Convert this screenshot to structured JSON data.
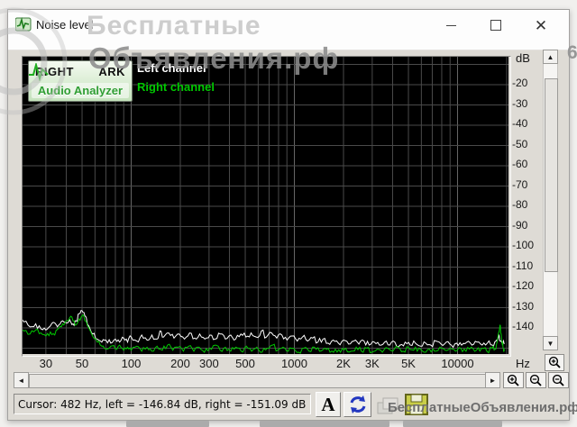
{
  "window": {
    "title": "Noise level",
    "controls": [
      "minimize",
      "maximize",
      "close"
    ]
  },
  "logo": {
    "brand_left": "RIGHT",
    "brand_right": "ARK",
    "subtitle": "Audio Analyzer"
  },
  "legend": [
    {
      "label": "Left channel",
      "color": "#ffffff"
    },
    {
      "label": "Right channel",
      "color": "#00c800"
    }
  ],
  "status_bar": {
    "text": "Cursor:  482 Hz,  left = -146.84 dB,  right = -151.09 dB"
  },
  "toolbar": {
    "text_button_label": "A"
  },
  "watermark": {
    "line1": "Бесплатные",
    "line2": "Объявления.рф",
    "bottom": "БесплатныеОбъявления.рф",
    "edge_fragment": "6"
  },
  "chart_data": {
    "type": "line",
    "title": "Noise level",
    "x_axis": {
      "label": "Hz",
      "scale": "log",
      "min": 20,
      "max": 20000,
      "ticks": [
        [
          30,
          "30"
        ],
        [
          50,
          "50"
        ],
        [
          100,
          "100"
        ],
        [
          200,
          "200"
        ],
        [
          300,
          "300"
        ],
        [
          500,
          "500"
        ],
        [
          1000,
          "1000"
        ],
        [
          2000,
          "2K"
        ],
        [
          3000,
          "3K"
        ],
        [
          5000,
          "5K"
        ],
        [
          10000,
          "10000"
        ]
      ],
      "gridlines": [
        30,
        40,
        50,
        60,
        70,
        80,
        90,
        100,
        200,
        300,
        400,
        500,
        600,
        700,
        800,
        900,
        1000,
        2000,
        3000,
        4000,
        5000,
        6000,
        7000,
        8000,
        9000,
        10000,
        20000
      ]
    },
    "y_axis": {
      "label": "dB",
      "min": -153,
      "max": -6,
      "ticks": [
        -20,
        -30,
        -40,
        -50,
        -60,
        -70,
        -80,
        -90,
        -100,
        -110,
        -120,
        -130,
        -140
      ],
      "gridlines": [
        -10,
        -20,
        -30,
        -40,
        -50,
        -60,
        -70,
        -80,
        -90,
        -100,
        -110,
        -120,
        -130,
        -140,
        -150
      ]
    },
    "grid_color": "#4a4a4a",
    "decade_grid_color": "#676767",
    "series": [
      {
        "name": "Left channel",
        "color": "#ffffff",
        "points": [
          [
            20,
            -135.5
          ],
          [
            22,
            -137
          ],
          [
            24,
            -139.5
          ],
          [
            26,
            -138
          ],
          [
            28,
            -140.5
          ],
          [
            30,
            -141
          ],
          [
            32,
            -139
          ],
          [
            34,
            -137.5
          ],
          [
            36,
            -138.5
          ],
          [
            38,
            -136.5
          ],
          [
            40,
            -137.5
          ],
          [
            42,
            -136
          ],
          [
            44,
            -138
          ],
          [
            46,
            -136.5
          ],
          [
            48,
            -133
          ],
          [
            50,
            -131.5
          ],
          [
            52,
            -134
          ],
          [
            55,
            -139
          ],
          [
            58,
            -143
          ],
          [
            62,
            -145.5
          ],
          [
            66,
            -147
          ],
          [
            70,
            -146
          ],
          [
            75,
            -147.5
          ],
          [
            80,
            -145.5
          ],
          [
            85,
            -147
          ],
          [
            90,
            -145
          ],
          [
            95,
            -147
          ],
          [
            100,
            -144.5
          ],
          [
            108,
            -146.5
          ],
          [
            116,
            -143.5
          ],
          [
            125,
            -146
          ],
          [
            134,
            -143.5
          ],
          [
            144,
            -145.5
          ],
          [
            150,
            -141.5
          ],
          [
            158,
            -144.5
          ],
          [
            170,
            -142.5
          ],
          [
            183,
            -145
          ],
          [
            197,
            -143
          ],
          [
            212,
            -145.5
          ],
          [
            228,
            -142.5
          ],
          [
            245,
            -145
          ],
          [
            263,
            -143
          ],
          [
            283,
            -145.5
          ],
          [
            304,
            -143.5
          ],
          [
            327,
            -145.5
          ],
          [
            352,
            -143
          ],
          [
            378,
            -145.5
          ],
          [
            407,
            -143.5
          ],
          [
            437,
            -145.5
          ],
          [
            470,
            -143
          ],
          [
            505,
            -144.5
          ],
          [
            543,
            -142.5
          ],
          [
            584,
            -144.5
          ],
          [
            628,
            -141.5
          ],
          [
            675,
            -144.5
          ],
          [
            726,
            -142.5
          ],
          [
            780,
            -145
          ],
          [
            839,
            -143.5
          ],
          [
            902,
            -146
          ],
          [
            970,
            -144
          ],
          [
            1043,
            -146.5
          ],
          [
            1121,
            -144.5
          ],
          [
            1205,
            -146.5
          ],
          [
            1296,
            -145
          ],
          [
            1393,
            -147
          ],
          [
            1498,
            -145.5
          ],
          [
            1610,
            -147.5
          ],
          [
            1731,
            -146
          ],
          [
            1861,
            -147.5
          ],
          [
            2001,
            -146
          ],
          [
            2151,
            -148
          ],
          [
            2313,
            -146.5
          ],
          [
            2487,
            -148
          ],
          [
            2674,
            -146.5
          ],
          [
            2875,
            -148.5
          ],
          [
            3091,
            -147
          ],
          [
            3323,
            -148.5
          ],
          [
            3573,
            -147
          ],
          [
            3841,
            -148.5
          ],
          [
            4130,
            -147
          ],
          [
            4440,
            -148.5
          ],
          [
            4774,
            -147
          ],
          [
            5133,
            -148.5
          ],
          [
            5518,
            -147.5
          ],
          [
            5933,
            -149
          ],
          [
            6379,
            -147.5
          ],
          [
            6858,
            -148.5
          ],
          [
            7374,
            -146.5
          ],
          [
            7928,
            -148
          ],
          [
            8524,
            -147
          ],
          [
            9165,
            -148.5
          ],
          [
            9854,
            -147.5
          ],
          [
            10594,
            -148.5
          ],
          [
            11391,
            -147
          ],
          [
            12247,
            -148.5
          ],
          [
            13168,
            -147
          ],
          [
            14158,
            -148.5
          ],
          [
            15222,
            -147.5
          ],
          [
            16366,
            -148.5
          ],
          [
            17200,
            -146.5
          ],
          [
            17800,
            -144.5
          ],
          [
            18300,
            -146.5
          ],
          [
            18800,
            -147.5
          ],
          [
            19300,
            -148
          ]
        ]
      },
      {
        "name": "Right channel",
        "color": "#00c800",
        "points": [
          [
            20,
            -139.5
          ],
          [
            22,
            -141.5
          ],
          [
            24,
            -143
          ],
          [
            26,
            -141
          ],
          [
            28,
            -142.5
          ],
          [
            30,
            -144
          ],
          [
            32,
            -142
          ],
          [
            34,
            -143.5
          ],
          [
            36,
            -140
          ],
          [
            38,
            -138
          ],
          [
            40,
            -136.5
          ],
          [
            42,
            -135
          ],
          [
            44,
            -136.5
          ],
          [
            46,
            -138.5
          ],
          [
            48,
            -135.5
          ],
          [
            50,
            -134
          ],
          [
            52,
            -136.5
          ],
          [
            55,
            -140
          ],
          [
            58,
            -144
          ],
          [
            62,
            -147
          ],
          [
            66,
            -149
          ],
          [
            70,
            -150.5
          ],
          [
            75,
            -149
          ],
          [
            80,
            -150.5
          ],
          [
            85,
            -148.5
          ],
          [
            90,
            -151
          ],
          [
            95,
            -149.5
          ],
          [
            100,
            -151
          ],
          [
            108,
            -149
          ],
          [
            116,
            -151.5
          ],
          [
            125,
            -149.5
          ],
          [
            134,
            -151.5
          ],
          [
            144,
            -149
          ],
          [
            155,
            -151
          ],
          [
            167,
            -148.5
          ],
          [
            180,
            -151
          ],
          [
            194,
            -149.5
          ],
          [
            209,
            -151.5
          ],
          [
            225,
            -149
          ],
          [
            242,
            -151.5
          ],
          [
            261,
            -149.5
          ],
          [
            281,
            -152
          ],
          [
            303,
            -150
          ],
          [
            326,
            -148.5
          ],
          [
            351,
            -151
          ],
          [
            378,
            -149.5
          ],
          [
            407,
            -151.5
          ],
          [
            438,
            -149.5
          ],
          [
            472,
            -151.5
          ],
          [
            508,
            -149
          ],
          [
            547,
            -151.5
          ],
          [
            589,
            -149.5
          ],
          [
            634,
            -152
          ],
          [
            683,
            -150
          ],
          [
            735,
            -148.5
          ],
          [
            791,
            -151
          ],
          [
            852,
            -149.5
          ],
          [
            917,
            -151.5
          ],
          [
            987,
            -150
          ],
          [
            1063,
            -152
          ],
          [
            1144,
            -150
          ],
          [
            1232,
            -151.5
          ],
          [
            1326,
            -149.5
          ],
          [
            1428,
            -151.5
          ],
          [
            1537,
            -150
          ],
          [
            1655,
            -152
          ],
          [
            1782,
            -150.5
          ],
          [
            1918,
            -152
          ],
          [
            2065,
            -150
          ],
          [
            2223,
            -151.5
          ],
          [
            2393,
            -149.5
          ],
          [
            2576,
            -151.5
          ],
          [
            2774,
            -150
          ],
          [
            2986,
            -152
          ],
          [
            3215,
            -150.5
          ],
          [
            3461,
            -152
          ],
          [
            3726,
            -150
          ],
          [
            4011,
            -151.5
          ],
          [
            4318,
            -149.5
          ],
          [
            4649,
            -151.5
          ],
          [
            5005,
            -149.5
          ],
          [
            5388,
            -151
          ],
          [
            5800,
            -150
          ],
          [
            6244,
            -152
          ],
          [
            6722,
            -150.5
          ],
          [
            7237,
            -151.5
          ],
          [
            7791,
            -149.5
          ],
          [
            8387,
            -151
          ],
          [
            9029,
            -150
          ],
          [
            9720,
            -151.5
          ],
          [
            10464,
            -150
          ],
          [
            11265,
            -151.5
          ],
          [
            12127,
            -149.5
          ],
          [
            13056,
            -151
          ],
          [
            14055,
            -150
          ],
          [
            15131,
            -151.5
          ],
          [
            16289,
            -150
          ],
          [
            17000,
            -150.5
          ],
          [
            17500,
            -147
          ],
          [
            17900,
            -142
          ],
          [
            18200,
            -138.5
          ],
          [
            18500,
            -143
          ],
          [
            18800,
            -148
          ],
          [
            19100,
            -150.5
          ],
          [
            19400,
            -151
          ]
        ]
      }
    ]
  }
}
